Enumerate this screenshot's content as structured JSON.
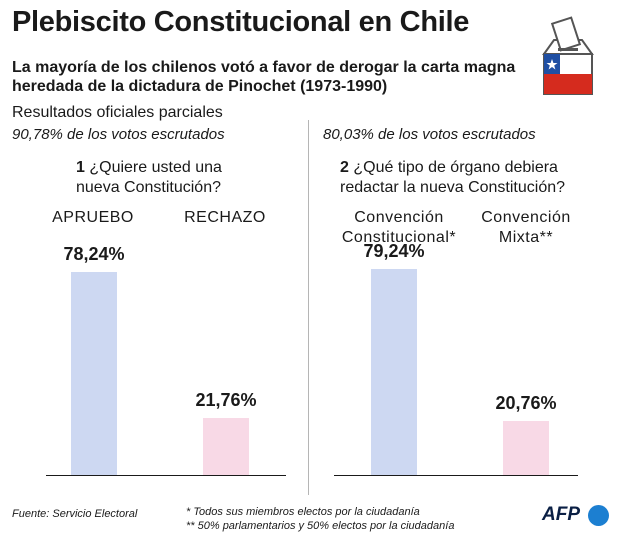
{
  "header": {
    "title": "Plebiscito Constitucional en Chile",
    "subtitle": "La mayoría de los chilenos votó a favor de derogar la carta magna heredada de la dictadura de Pinochet (1973-1990)",
    "results_label": "Resultados oficiales parciales"
  },
  "icons": [
    "ballot-box-icon",
    "chile-flag-icon"
  ],
  "colors": {
    "approve": "#cdd8f2",
    "reject": "#f8d9e6",
    "flag_blue": "#1f4fa3",
    "flag_red": "#d52b1e",
    "afp_blue": "#1c7fd1"
  },
  "chart_data": [
    {
      "type": "bar",
      "scrutiny_note": "90,78% de los votos escrutados",
      "question_number": "1",
      "question": "¿Quiere usted una nueva Constitución?",
      "categories": [
        "APRUEBO",
        "RECHAZO"
      ],
      "values": [
        78.24,
        21.76
      ],
      "value_labels": [
        "78,24%",
        "21,76%"
      ],
      "ylim": [
        0,
        100
      ]
    },
    {
      "type": "bar",
      "scrutiny_note": "80,03% de los votos escrutados",
      "question_number": "2",
      "question": "¿Qué tipo de órgano debiera redactar la nueva Constitución?",
      "categories": [
        "Convención Constitucional*",
        "Convención Mixta**"
      ],
      "values": [
        79.24,
        20.76
      ],
      "value_labels": [
        "79,24%",
        "20,76%"
      ],
      "ylim": [
        0,
        100
      ]
    }
  ],
  "footer": {
    "source": "Fuente: Servicio Electoral",
    "note1": "* Todos sus miembros electos por la ciudadanía",
    "note2": "** 50% parlamentarios y 50% electos por la ciudadanía",
    "brand": "AFP"
  }
}
